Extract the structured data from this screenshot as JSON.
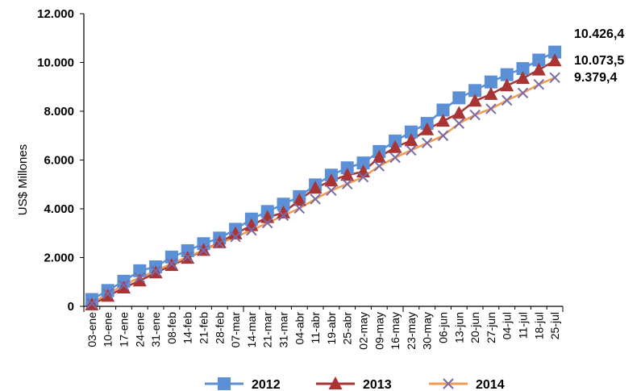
{
  "chart_data": {
    "type": "line",
    "title": "",
    "xlabel": "",
    "ylabel": "US$ Millones",
    "ylim": [
      0,
      12000
    ],
    "yticks": [
      "0",
      "2.000",
      "4.000",
      "6.000",
      "8.000",
      "10.000",
      "12.000"
    ],
    "grid": false,
    "legend_position": "bottom",
    "categories": [
      "03-ene",
      "10-ene",
      "17-ene",
      "24-ene",
      "31-ene",
      "08-feb",
      "14-feb",
      "21-feb",
      "28-feb",
      "07-mar",
      "14-mar",
      "21-mar",
      "31-mar",
      "04-abr",
      "11-abr",
      "19-abr",
      "25-abr",
      "02-may",
      "09-may",
      "16-may",
      "23-may",
      "30-may",
      "06-jun",
      "13-jun",
      "20-jun",
      "27-jun",
      "04-jul",
      "11-jul",
      "18-jul",
      "25-jul"
    ],
    "series": [
      {
        "name": "2012",
        "color": "#5b8fd6",
        "marker": "square",
        "end_label": "10.426,4",
        "values": [
          280,
          650,
          1030,
          1460,
          1620,
          2020,
          2280,
          2570,
          2800,
          3160,
          3580,
          3890,
          4190,
          4500,
          4980,
          5380,
          5680,
          5880,
          6350,
          6780,
          7150,
          7500,
          8050,
          8550,
          8850,
          9200,
          9500,
          9750,
          10100,
          10426.4
        ]
      },
      {
        "name": "2013",
        "color": "#a83434",
        "marker": "triangle",
        "end_label": "10.073,5",
        "values": [
          70,
          420,
          760,
          1050,
          1380,
          1680,
          1980,
          2300,
          2620,
          2980,
          3320,
          3650,
          3840,
          4350,
          4850,
          5150,
          5380,
          5520,
          6120,
          6520,
          6800,
          7250,
          7600,
          7920,
          8420,
          8700,
          9050,
          9350,
          9700,
          10073.5
        ]
      },
      {
        "name": "2014",
        "color": "#f29b53",
        "marker": "x",
        "end_label": "9.379,4",
        "values": [
          120,
          520,
          870,
          1180,
          1450,
          1750,
          2030,
          2300,
          2580,
          2850,
          3120,
          3420,
          3720,
          4020,
          4400,
          4750,
          5020,
          5300,
          5750,
          6100,
          6400,
          6700,
          7000,
          7500,
          7850,
          8100,
          8450,
          8750,
          9100,
          9379.4
        ]
      }
    ]
  }
}
